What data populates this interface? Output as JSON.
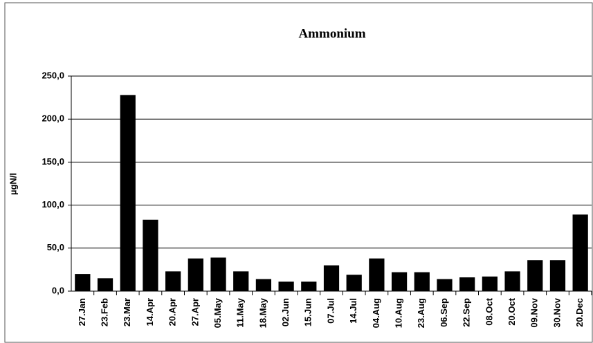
{
  "chart_data": {
    "type": "bar",
    "title": "Ammonium",
    "y_label": "µgN/l",
    "categories": [
      "27.Jan",
      "23.Feb",
      "23.Mar",
      "14.Apr",
      "20.Apr",
      "27.Apr",
      "05.May",
      "11.May",
      "18.May",
      "02.Jun",
      "15.Jun",
      "07.Jul",
      "14.Jul",
      "04.Aug",
      "10.Aug",
      "23.Aug",
      "06.Sep",
      "22.Sep",
      "08.Oct",
      "20.Oct",
      "09.Nov",
      "30.Nov",
      "20.Dec"
    ],
    "values": [
      20,
      15,
      228,
      83,
      23,
      38,
      39,
      23,
      14,
      11,
      11,
      30,
      19,
      38,
      22,
      22,
      14,
      16,
      17,
      23,
      36,
      36,
      89
    ],
    "color": "#000000",
    "ylim": [
      0,
      250
    ],
    "yticks": [
      {
        "value": 0,
        "label": "0,0"
      },
      {
        "value": 50,
        "label": "50,0"
      },
      {
        "value": 100,
        "label": "100,0"
      },
      {
        "value": 150,
        "label": "150,0"
      },
      {
        "value": 200,
        "label": "200,0"
      },
      {
        "value": 250,
        "label": "250,0"
      }
    ],
    "grid": true
  }
}
